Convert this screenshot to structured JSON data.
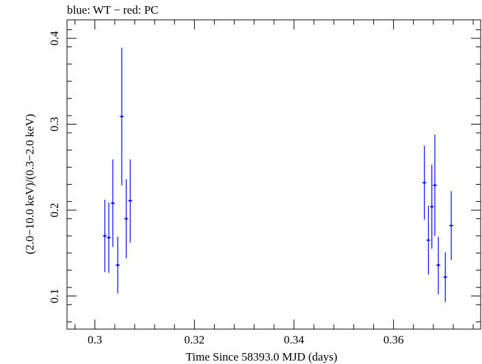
{
  "chart_data": {
    "type": "scatter",
    "title": "blue: WT − red: PC",
    "xlabel": "Time Since 58393.0 MJD (days)",
    "ylabel": "(2.0−10.0 keV)/(0.3−2.0 keV)",
    "xlim": [
      0.2944,
      0.3775
    ],
    "ylim": [
      0.0615,
      0.4215
    ],
    "x_ticks": [
      0.3,
      0.32,
      0.34,
      0.36
    ],
    "x_tick_labels": [
      "0.3",
      "0.32",
      "0.34",
      "0.36"
    ],
    "y_ticks": [
      0.1,
      0.2,
      0.3,
      0.4
    ],
    "y_tick_labels": [
      "0.1",
      "0.2",
      "0.3",
      "0.4"
    ],
    "grid": false,
    "series": [
      {
        "color": "#0000ff",
        "points": [
          {
            "x": 0.302,
            "y": 0.17,
            "y_low": 0.128,
            "y_high": 0.212
          },
          {
            "x": 0.3028,
            "y": 0.168,
            "y_low": 0.127,
            "y_high": 0.209
          },
          {
            "x": 0.3036,
            "y": 0.208,
            "y_low": 0.157,
            "y_high": 0.259
          },
          {
            "x": 0.3046,
            "y": 0.136,
            "y_low": 0.103,
            "y_high": 0.169
          },
          {
            "x": 0.3054,
            "y": 0.309,
            "y_low": 0.229,
            "y_high": 0.389
          },
          {
            "x": 0.3063,
            "y": 0.19,
            "y_low": 0.144,
            "y_high": 0.236
          },
          {
            "x": 0.3071,
            "y": 0.211,
            "y_low": 0.162,
            "y_high": 0.259
          },
          {
            "x": 0.3662,
            "y": 0.232,
            "y_low": 0.189,
            "y_high": 0.275
          },
          {
            "x": 0.367,
            "y": 0.165,
            "y_low": 0.125,
            "y_high": 0.205
          },
          {
            "x": 0.3677,
            "y": 0.204,
            "y_low": 0.155,
            "y_high": 0.253
          },
          {
            "x": 0.3683,
            "y": 0.229,
            "y_low": 0.17,
            "y_high": 0.288
          },
          {
            "x": 0.369,
            "y": 0.136,
            "y_low": 0.102,
            "y_high": 0.169
          },
          {
            "x": 0.3704,
            "y": 0.122,
            "y_low": 0.093,
            "y_high": 0.151
          },
          {
            "x": 0.3716,
            "y": 0.182,
            "y_low": 0.142,
            "y_high": 0.222
          }
        ]
      }
    ]
  }
}
